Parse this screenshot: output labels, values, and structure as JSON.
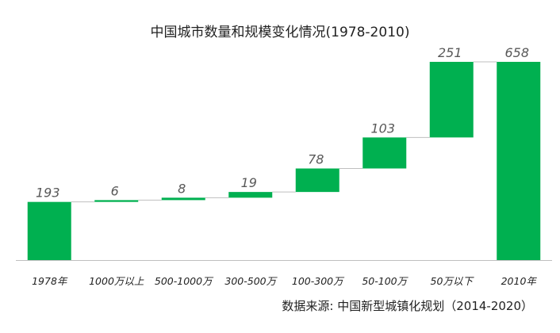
{
  "chart_data": {
    "type": "waterfall",
    "title": "中国城市数量和规模变化情况(1978-2010)",
    "categories": [
      "1978年",
      "1000万以上",
      "500-1000万",
      "300-500万",
      "100-300万",
      "50-100万",
      "50万以下",
      "2010年"
    ],
    "values": [
      193,
      6,
      8,
      19,
      78,
      103,
      251,
      658
    ],
    "bar_kind": [
      "total",
      "increase",
      "increase",
      "increase",
      "increase",
      "increase",
      "increase",
      "total"
    ],
    "ylim": [
      0,
      658
    ],
    "grid": false,
    "legend": "none",
    "source_note": "数据来源: 中国新型城镇化规划（2014-2020）",
    "colors": {
      "bar": "#00B050",
      "connector": "#BFBFBF",
      "axis": "#BFBFBF",
      "label": "#595959"
    }
  }
}
